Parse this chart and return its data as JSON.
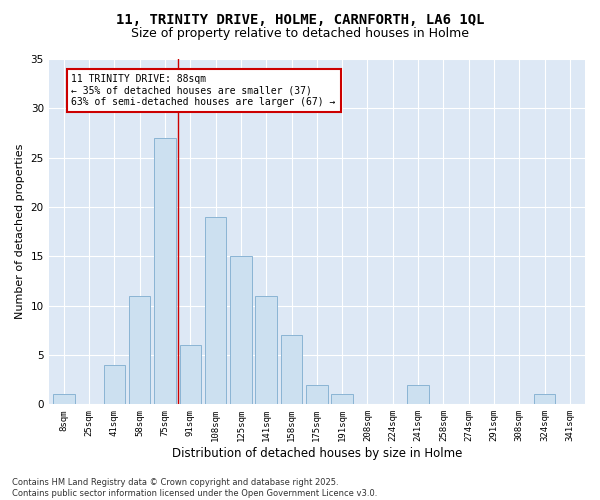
{
  "title1": "11, TRINITY DRIVE, HOLME, CARNFORTH, LA6 1QL",
  "title2": "Size of property relative to detached houses in Holme",
  "xlabel": "Distribution of detached houses by size in Holme",
  "ylabel": "Number of detached properties",
  "categories": [
    "8sqm",
    "25sqm",
    "41sqm",
    "58sqm",
    "75sqm",
    "91sqm",
    "108sqm",
    "125sqm",
    "141sqm",
    "158sqm",
    "175sqm",
    "191sqm",
    "208sqm",
    "224sqm",
    "241sqm",
    "258sqm",
    "274sqm",
    "291sqm",
    "308sqm",
    "324sqm",
    "341sqm"
  ],
  "values": [
    1,
    0,
    4,
    11,
    27,
    6,
    19,
    15,
    11,
    7,
    2,
    1,
    0,
    0,
    2,
    0,
    0,
    0,
    0,
    1,
    0
  ],
  "bar_color": "#cce0f0",
  "bar_edgecolor": "#8ab4d4",
  "bar_linewidth": 0.7,
  "vline_x": 4.5,
  "vline_color": "#cc0000",
  "annotation_box_text": "11 TRINITY DRIVE: 88sqm\n← 35% of detached houses are smaller (37)\n63% of semi-detached houses are larger (67) →",
  "annot_fontsize": 7,
  "box_edgecolor": "#cc0000",
  "ylim": [
    0,
    35
  ],
  "yticks": [
    0,
    5,
    10,
    15,
    20,
    25,
    30,
    35
  ],
  "bg_color": "#ffffff",
  "plot_bg_color": "#dde8f5",
  "grid_color": "#ffffff",
  "footer_text": "Contains HM Land Registry data © Crown copyright and database right 2025.\nContains public sector information licensed under the Open Government Licence v3.0.",
  "title_fontsize": 10,
  "subtitle_fontsize": 9,
  "xlabel_fontsize": 8.5,
  "ylabel_fontsize": 8,
  "tick_fontsize": 6.5,
  "footer_fontsize": 6
}
